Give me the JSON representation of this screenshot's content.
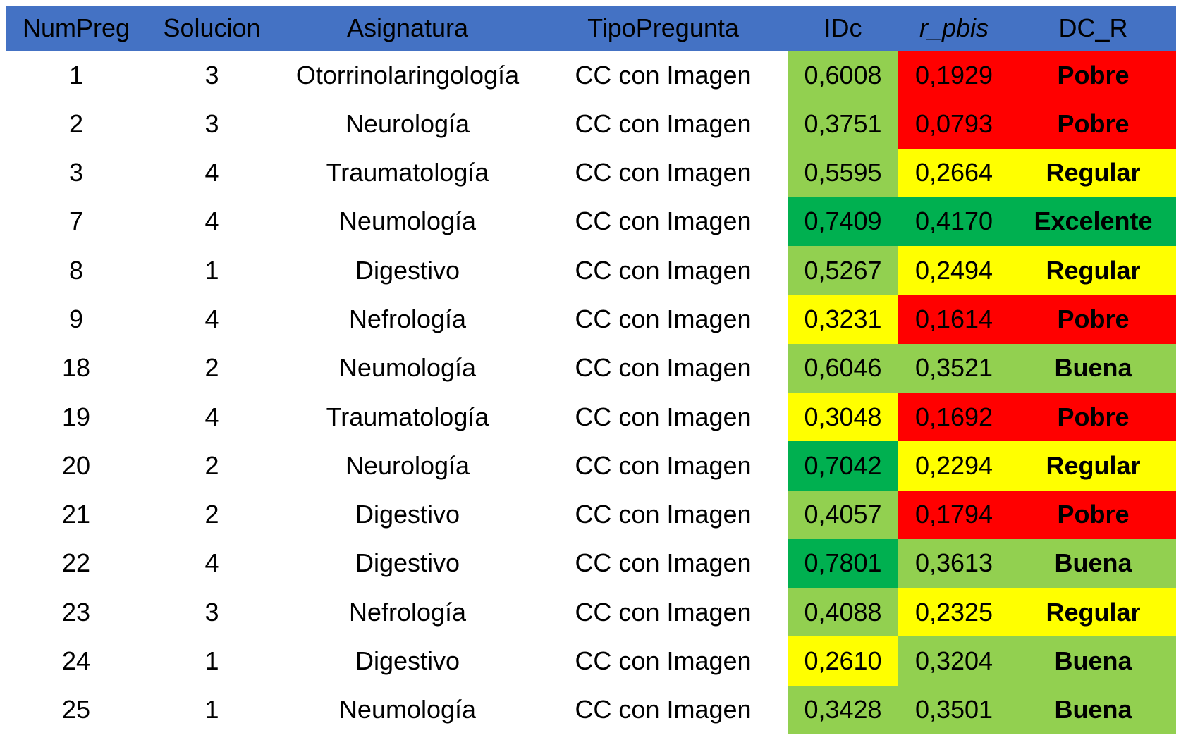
{
  "chart_data": {
    "type": "table",
    "columns": [
      "NumPreg",
      "Solucion",
      "Asignatura",
      "TipoPregunta",
      "IDc",
      "r_pbis",
      "DC_R"
    ],
    "rows": [
      {
        "num_preg": "1",
        "solucion": "3",
        "asignatura": "Otorrinolaringología",
        "tipo_pregunta": "CC con Imagen",
        "idc": "0,6008",
        "r_pbis": "0,1929",
        "dc_r": "Pobre",
        "idc_bg": "light_green",
        "pbis_bg": "red"
      },
      {
        "num_preg": "2",
        "solucion": "3",
        "asignatura": "Neurología",
        "tipo_pregunta": "CC con Imagen",
        "idc": "0,3751",
        "r_pbis": "0,0793",
        "dc_r": "Pobre",
        "idc_bg": "light_green",
        "pbis_bg": "red"
      },
      {
        "num_preg": "3",
        "solucion": "4",
        "asignatura": "Traumatología",
        "tipo_pregunta": "CC con Imagen",
        "idc": "0,5595",
        "r_pbis": "0,2664",
        "dc_r": "Regular",
        "idc_bg": "light_green",
        "pbis_bg": "yellow"
      },
      {
        "num_preg": "7",
        "solucion": "4",
        "asignatura": "Neumología",
        "tipo_pregunta": "CC con Imagen",
        "idc": "0,7409",
        "r_pbis": "0,4170",
        "dc_r": "Excelente",
        "idc_bg": "dark_green",
        "pbis_bg": "dark_green"
      },
      {
        "num_preg": "8",
        "solucion": "1",
        "asignatura": "Digestivo",
        "tipo_pregunta": "CC con Imagen",
        "idc": "0,5267",
        "r_pbis": "0,2494",
        "dc_r": "Regular",
        "idc_bg": "light_green",
        "pbis_bg": "yellow"
      },
      {
        "num_preg": "9",
        "solucion": "4",
        "asignatura": "Nefrología",
        "tipo_pregunta": "CC con Imagen",
        "idc": "0,3231",
        "r_pbis": "0,1614",
        "dc_r": "Pobre",
        "idc_bg": "yellow",
        "pbis_bg": "red"
      },
      {
        "num_preg": "18",
        "solucion": "2",
        "asignatura": "Neumología",
        "tipo_pregunta": "CC con Imagen",
        "idc": "0,6046",
        "r_pbis": "0,3521",
        "dc_r": "Buena",
        "idc_bg": "light_green",
        "pbis_bg": "light_green"
      },
      {
        "num_preg": "19",
        "solucion": "4",
        "asignatura": "Traumatología",
        "tipo_pregunta": "CC con Imagen",
        "idc": "0,3048",
        "r_pbis": "0,1692",
        "dc_r": "Pobre",
        "idc_bg": "yellow",
        "pbis_bg": "red"
      },
      {
        "num_preg": "20",
        "solucion": "2",
        "asignatura": "Neurología",
        "tipo_pregunta": "CC con Imagen",
        "idc": "0,7042",
        "r_pbis": "0,2294",
        "dc_r": "Regular",
        "idc_bg": "dark_green",
        "pbis_bg": "yellow"
      },
      {
        "num_preg": "21",
        "solucion": "2",
        "asignatura": "Digestivo",
        "tipo_pregunta": "CC con Imagen",
        "idc": "0,4057",
        "r_pbis": "0,1794",
        "dc_r": "Pobre",
        "idc_bg": "light_green",
        "pbis_bg": "red"
      },
      {
        "num_preg": "22",
        "solucion": "4",
        "asignatura": "Digestivo",
        "tipo_pregunta": "CC con Imagen",
        "idc": "0,7801",
        "r_pbis": "0,3613",
        "dc_r": "Buena",
        "idc_bg": "dark_green",
        "pbis_bg": "light_green"
      },
      {
        "num_preg": "23",
        "solucion": "3",
        "asignatura": "Nefrología",
        "tipo_pregunta": "CC con Imagen",
        "idc": "0,4088",
        "r_pbis": "0,2325",
        "dc_r": "Regular",
        "idc_bg": "light_green",
        "pbis_bg": "yellow"
      },
      {
        "num_preg": "24",
        "solucion": "1",
        "asignatura": "Digestivo",
        "tipo_pregunta": "CC con Imagen",
        "idc": "0,2610",
        "r_pbis": "0,3204",
        "dc_r": "Buena",
        "idc_bg": "yellow",
        "pbis_bg": "light_green"
      },
      {
        "num_preg": "25",
        "solucion": "1",
        "asignatura": "Neumología",
        "tipo_pregunta": "CC con Imagen",
        "idc": "0,3428",
        "r_pbis": "0,3501",
        "dc_r": "Buena",
        "idc_bg": "light_green",
        "pbis_bg": "light_green"
      }
    ],
    "legend_semantics": {
      "red": "Pobre",
      "yellow": "Regular",
      "light_green": "Buena",
      "dark_green": "Excelente"
    }
  },
  "colors": {
    "header_blue": "#4472C4",
    "light_green": "#92D050",
    "dark_green": "#00B050",
    "yellow": "#FFFF00",
    "red": "#FF0000",
    "text": "#000000",
    "background": "#FFFFFF"
  }
}
